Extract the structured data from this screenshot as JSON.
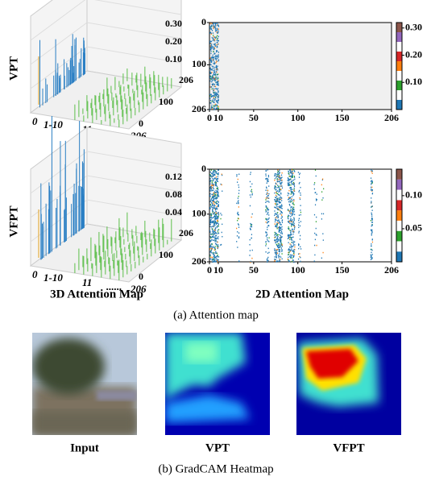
{
  "figure": {
    "rows": [
      {
        "label": "VPT",
        "plot3d": {
          "zticks": [
            "0.30",
            "0.20",
            "0.10"
          ],
          "depth_ticks": [
            "206",
            "100",
            "0"
          ],
          "x_labels": [
            "0",
            "1-10",
            "11",
            "......",
            "206"
          ]
        },
        "plot2d": {
          "xlim": [
            0,
            206
          ],
          "ylim": [
            0,
            206
          ],
          "xticks": [
            0,
            10,
            50,
            100,
            150,
            206
          ],
          "yticks": [
            0,
            100,
            206
          ],
          "background": "#f0f0f0",
          "clim": [
            0,
            0.32
          ],
          "cticks": [
            {
              "value": 0.3,
              "label": "0.30"
            },
            {
              "value": 0.2,
              "label": "0.20"
            },
            {
              "value": 0.1,
              "label": "0.10"
            }
          ]
        }
      },
      {
        "label": "VFPT",
        "plot3d": {
          "zticks": [
            "0.12",
            "0.08",
            "0.04"
          ],
          "depth_ticks": [
            "206",
            "100",
            "0"
          ],
          "x_labels": [
            "0",
            "1-10",
            "11",
            "......",
            "206"
          ]
        },
        "plot2d": {
          "xlim": [
            0,
            206
          ],
          "ylim": [
            0,
            206
          ],
          "xticks": [
            0,
            10,
            50,
            100,
            150,
            206
          ],
          "yticks": [
            0,
            100,
            206
          ],
          "background": "#ffffff",
          "clim": [
            0,
            0.14
          ],
          "cticks": [
            {
              "value": 0.1,
              "label": "0.10"
            },
            {
              "value": 0.05,
              "label": "0.05"
            }
          ]
        }
      }
    ],
    "x_label_colors": [
      "#d4a017",
      "#1f77b4",
      "#2ca02c",
      "#2ca02c",
      "#2ca02c"
    ],
    "colormap": [
      "#1f77b4",
      "#ffffff",
      "#2ca02c",
      "#ffffff",
      "#ff7f0e",
      "#d62728",
      "#ffffff",
      "#9467bd",
      "#8c564b"
    ],
    "axis_titles": [
      "3D Attention Map",
      "2D Attention Map"
    ],
    "caption_a": "(a) Attention map",
    "heatmaps": [
      "Input",
      "VPT",
      "VFPT"
    ],
    "caption_b": "(b) GradCAM Heatmap"
  }
}
